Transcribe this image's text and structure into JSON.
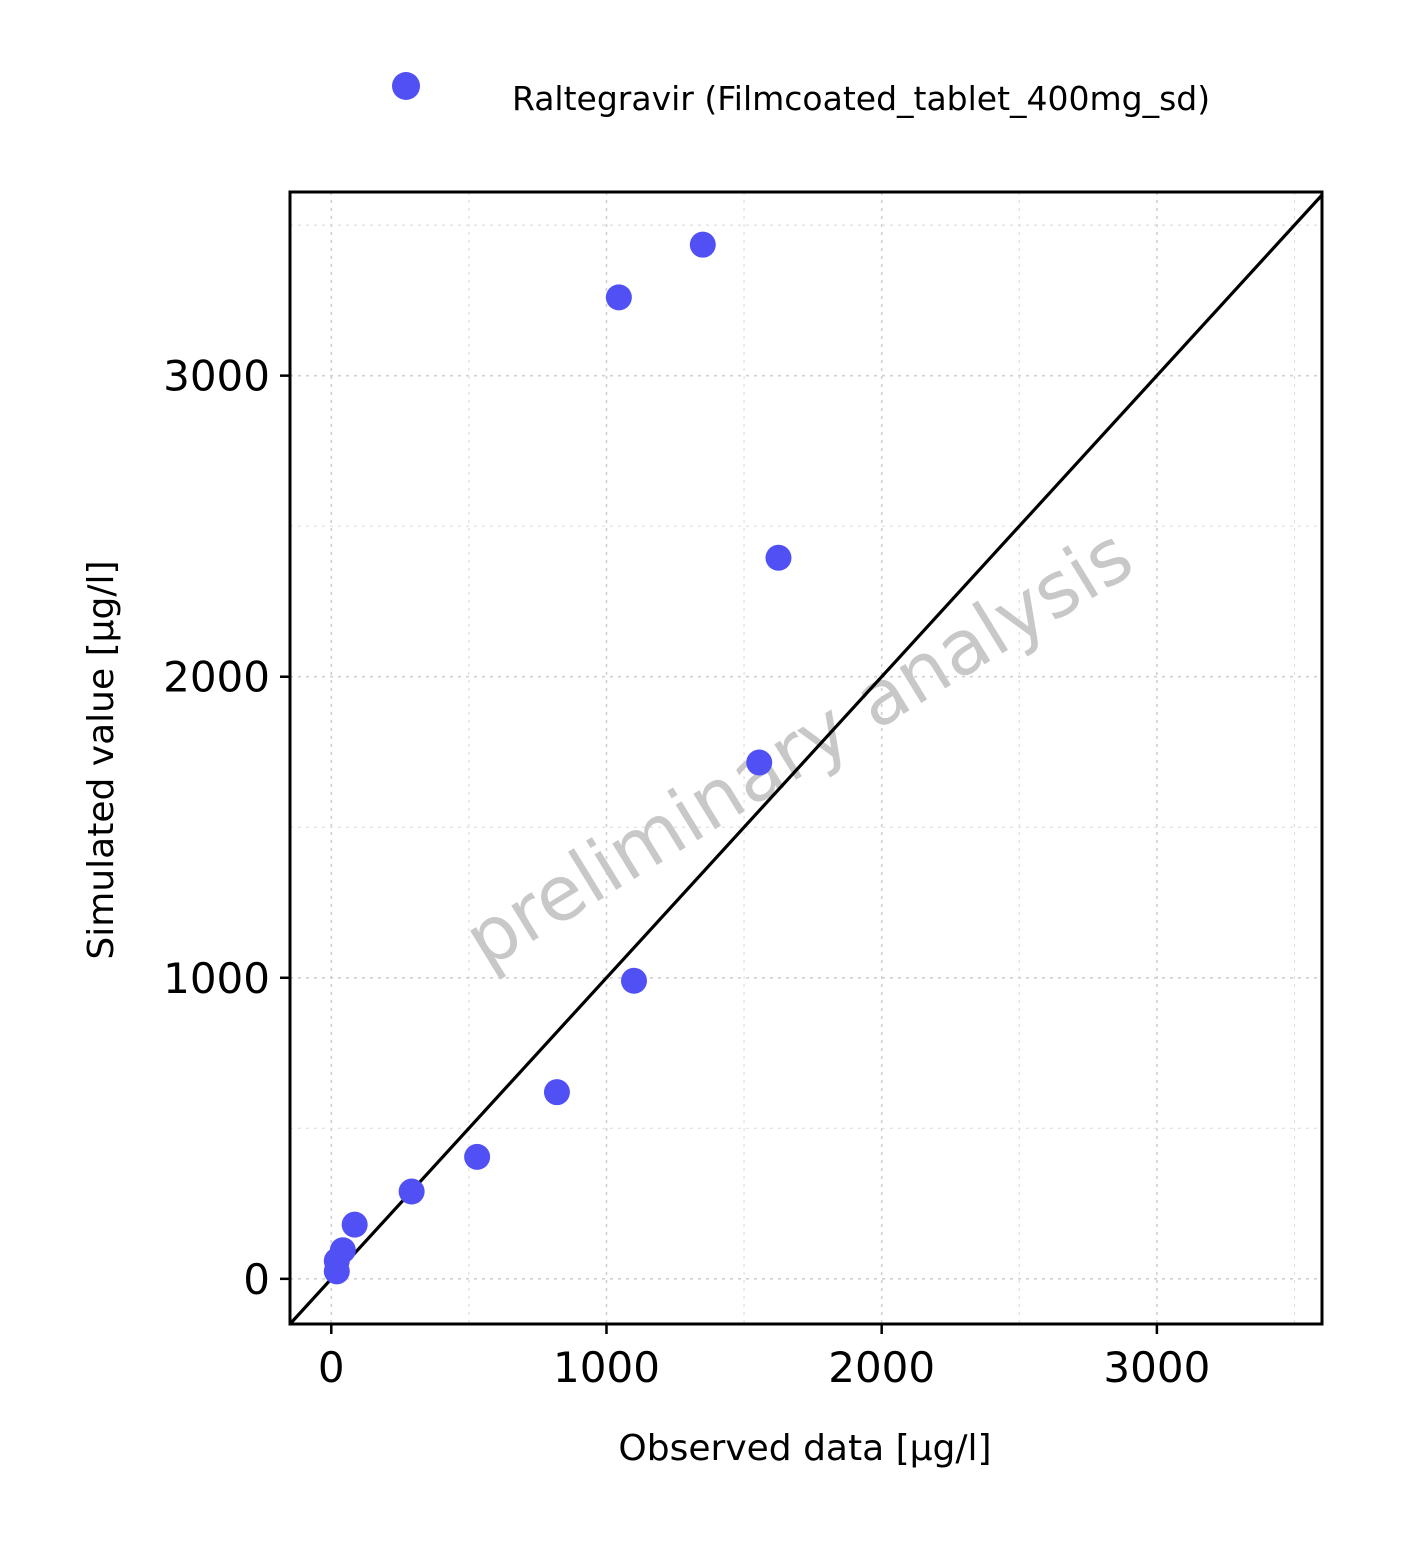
{
  "chart_data": {
    "type": "scatter",
    "xlabel": "Observed data [µg/l]",
    "ylabel": "Simulated value [µg/l]",
    "xlim": [
      -150,
      3600
    ],
    "ylim": [
      -150,
      3610
    ],
    "x_ticks": [
      0,
      1000,
      2000,
      3000
    ],
    "y_ticks": [
      0,
      1000,
      2000,
      3000
    ],
    "x_tick_labels": [
      "0",
      "1000",
      "2000",
      "3000"
    ],
    "y_tick_labels": [
      "0",
      "1000",
      "2000",
      "3000"
    ],
    "grid": true,
    "identity_line": true,
    "legend_position": "top",
    "watermark": "preliminary analysis",
    "series": [
      {
        "name": "Raltegravir (Filmcoated_tablet_400mg_sd)",
        "color": "#5050f5",
        "points": [
          {
            "x": 20,
            "y": 25
          },
          {
            "x": 20,
            "y": 60
          },
          {
            "x": 42,
            "y": 95
          },
          {
            "x": 85,
            "y": 180
          },
          {
            "x": 292,
            "y": 290
          },
          {
            "x": 530,
            "y": 405
          },
          {
            "x": 820,
            "y": 620
          },
          {
            "x": 1100,
            "y": 990
          },
          {
            "x": 1555,
            "y": 1715
          },
          {
            "x": 1045,
            "y": 3260
          },
          {
            "x": 1350,
            "y": 3435
          },
          {
            "x": 1625,
            "y": 2395
          }
        ]
      }
    ]
  }
}
